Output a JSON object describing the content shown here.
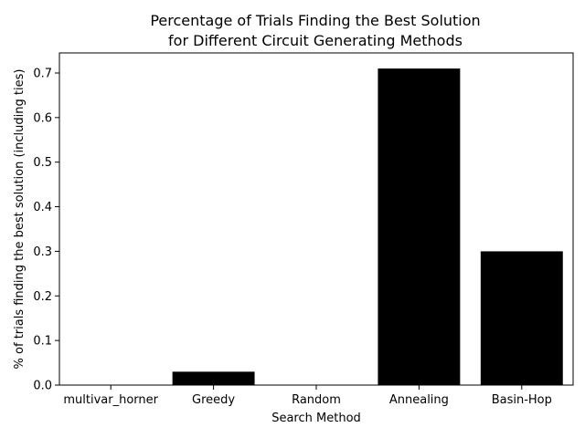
{
  "chart_data": {
    "type": "bar",
    "title": [
      "Percentage of Trials Finding the Best Solution",
      "for Different Circuit Generating Methods"
    ],
    "xlabel": "Search Method",
    "ylabel": "% of trials finding the best solution (including ties)",
    "categories": [
      "multivar_horner",
      "Greedy",
      "Random",
      "Annealing",
      "Basin-Hop"
    ],
    "values": [
      0.0,
      0.03,
      0.0,
      0.71,
      0.3
    ],
    "ylim": [
      0,
      0.745
    ],
    "yticks": [
      "0.0",
      "0.1",
      "0.2",
      "0.3",
      "0.4",
      "0.5",
      "0.6",
      "0.7"
    ],
    "bar_color": "#000000",
    "grid": false
  }
}
